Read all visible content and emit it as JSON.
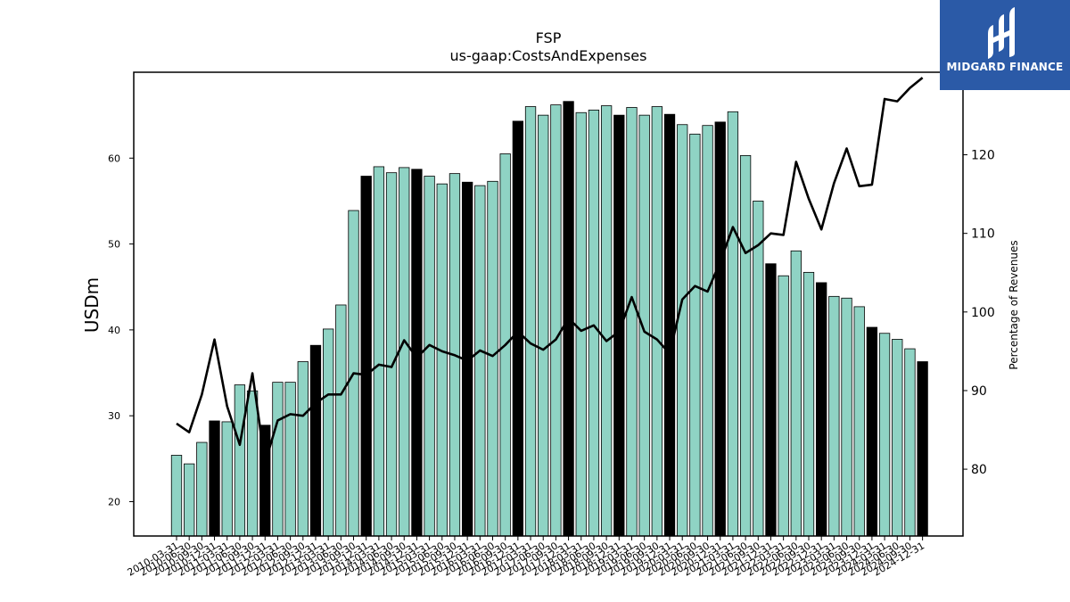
{
  "chart_data": {
    "type": "bar",
    "title": "FSP",
    "subtitle": "us-gaap:CostsAndExpenses",
    "ylabel": "USDm",
    "ylabel_right": "Percentage of Revenues",
    "ylim": [
      16,
      70
    ],
    "ylim_right": [
      71.5,
      130.5
    ],
    "yticks": [
      20,
      30,
      40,
      50,
      60
    ],
    "yticks_right": [
      80,
      90,
      100,
      110,
      120
    ],
    "categories": [
      "2010-03-31",
      "2010-06-30",
      "2010-09-30",
      "2010-12-31",
      "2011-03-31",
      "2011-06-30",
      "2011-09-30",
      "2011-12-31",
      "2012-03-31",
      "2012-06-30",
      "2012-09-30",
      "2012-12-31",
      "2013-03-31",
      "2013-06-30",
      "2013-09-30",
      "2013-12-31",
      "2014-03-31",
      "2014-06-30",
      "2014-09-30",
      "2014-12-31",
      "2015-03-31",
      "2015-06-30",
      "2015-09-30",
      "2015-12-31",
      "2016-03-31",
      "2016-06-30",
      "2016-09-30",
      "2016-12-31",
      "2017-03-31",
      "2017-06-30",
      "2017-09-30",
      "2017-12-31",
      "2018-03-31",
      "2018-06-30",
      "2018-09-30",
      "2018-12-31",
      "2019-03-31",
      "2019-06-30",
      "2019-09-30",
      "2019-12-31",
      "2020-03-31",
      "2020-06-30",
      "2020-09-30",
      "2020-12-31",
      "2021-03-31",
      "2021-06-30",
      "2021-09-30",
      "2021-12-31",
      "2022-03-31",
      "2022-06-30",
      "2022-09-30",
      "2022-12-31",
      "2023-03-31",
      "2023-06-30",
      "2023-09-30",
      "2023-12-31",
      "2024-03-31",
      "2024-06-30",
      "2024-09-30",
      "2024-12-31"
    ],
    "series": [
      {
        "values": [
          25.4,
          24.4,
          26.9,
          29.4,
          29.3,
          33.6,
          32.9,
          28.9,
          33.9,
          33.9,
          36.3,
          38.2,
          40.1,
          42.9,
          53.9,
          57.9,
          59.0,
          58.3,
          58.9,
          58.7,
          57.9,
          57.0,
          58.2,
          57.2,
          56.8,
          57.3,
          60.5,
          64.3,
          66.0,
          65.0,
          66.2,
          66.6,
          65.3,
          65.6,
          66.1,
          65.0,
          65.9,
          65.0,
          66.0,
          65.1,
          63.9,
          62.8,
          63.8,
          64.2,
          65.4,
          60.3,
          55.0,
          47.7,
          46.3,
          49.2,
          46.7,
          45.5,
          43.9,
          43.7,
          42.7,
          40.3,
          39.6,
          38.9,
          37.8,
          36.3
        ],
        "highlight_quarter": "Q4",
        "colors": {
          "normal": "#8fd3c4",
          "highlight": "#000000"
        }
      },
      {
        "name": "Percentage of Revenues",
        "axis": "right",
        "values": [
          85.8,
          84.7,
          89.5,
          96.5,
          88.0,
          83.1,
          92.2,
          80.8,
          86.2,
          87.0,
          86.8,
          88.4,
          89.5,
          89.5,
          92.2,
          92.0,
          93.3,
          93.0,
          96.4,
          94.2,
          95.8,
          95.0,
          94.5,
          93.8,
          95.1,
          94.4,
          95.8,
          97.5,
          96.0,
          95.2,
          96.5,
          99.2,
          97.6,
          98.3,
          96.3,
          97.5,
          101.9,
          97.5,
          96.5,
          94.7,
          101.6,
          103.3,
          102.6,
          106.4,
          110.8,
          107.5,
          108.5,
          110.0,
          109.8,
          119.1,
          114.4,
          110.5,
          116.4,
          120.8,
          116.0,
          116.2,
          127.1,
          126.8,
          128.5,
          129.8
        ],
        "color": "#000000"
      }
    ],
    "grid": false,
    "legend": "none"
  },
  "logo": {
    "text": "MIDGARD FINANCE",
    "color": "#2b5aa7"
  }
}
